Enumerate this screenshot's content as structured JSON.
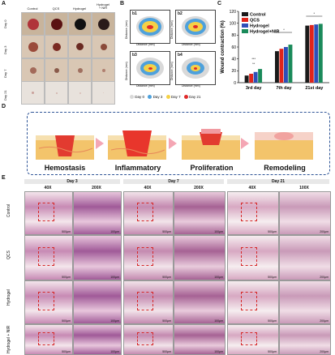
{
  "panel_labels": {
    "a": "A",
    "b": "B",
    "c": "C",
    "d": "D",
    "e": "E"
  },
  "panelA": {
    "columns": [
      "Control",
      "QCS",
      "Hydrogel",
      "Hydrogel\n+ NIR"
    ],
    "rows": [
      "Day 0",
      "Day 3",
      "Day 7",
      "Day 21"
    ]
  },
  "panelB": {
    "subplots": [
      "b1",
      "b2",
      "b3",
      "b4"
    ],
    "xlabel": "Distance (mm)",
    "ylabel": "Distance (mm)",
    "legend": [
      "Day 0",
      "Day 3",
      "Day 7",
      "Day 21"
    ],
    "colors": {
      "day0": "#d9d9d9",
      "day3": "#4ea1dc",
      "day7": "#f5d146",
      "day21": "#e02a2a"
    }
  },
  "chart_data": {
    "type": "bar",
    "categories": [
      "3rd day",
      "7th day",
      "21st day"
    ],
    "ylabel": "Wound contraction (%)",
    "ylim": [
      0,
      120
    ],
    "yticks": [
      "0",
      "20",
      "40",
      "60",
      "80",
      "100",
      "120"
    ],
    "series": [
      {
        "name": "Control",
        "color": "#1a1a1a",
        "values": [
          12,
          53,
          96
        ]
      },
      {
        "name": "QCS",
        "color": "#e0241b",
        "values": [
          15,
          57,
          97
        ]
      },
      {
        "name": "Hydrogel",
        "color": "#2f4fb8",
        "values": [
          18,
          60,
          98
        ]
      },
      {
        "name": "Hydrogel+NIR",
        "color": "#1a8a5a",
        "values": [
          23,
          64,
          99
        ]
      }
    ],
    "legend_position": "top-left",
    "significance": [
      "***",
      "**",
      "*",
      "*"
    ]
  },
  "panelD": {
    "stages": [
      "Hemostasis",
      "Inflammatory",
      "Proliferation",
      "Remodeling"
    ]
  },
  "panelE": {
    "groups": [
      "Day 3",
      "Day 7",
      "Day 21"
    ],
    "magnifications": [
      "40X",
      "200X",
      "40X",
      "200X",
      "40X",
      "100X"
    ],
    "rows": [
      "Control",
      "QCS",
      "Hydrogel",
      "Hydrogel + NIR"
    ],
    "scalebars": [
      "500μm",
      "100μm",
      "500μm",
      "100μm",
      "500μm",
      "200μm"
    ]
  }
}
